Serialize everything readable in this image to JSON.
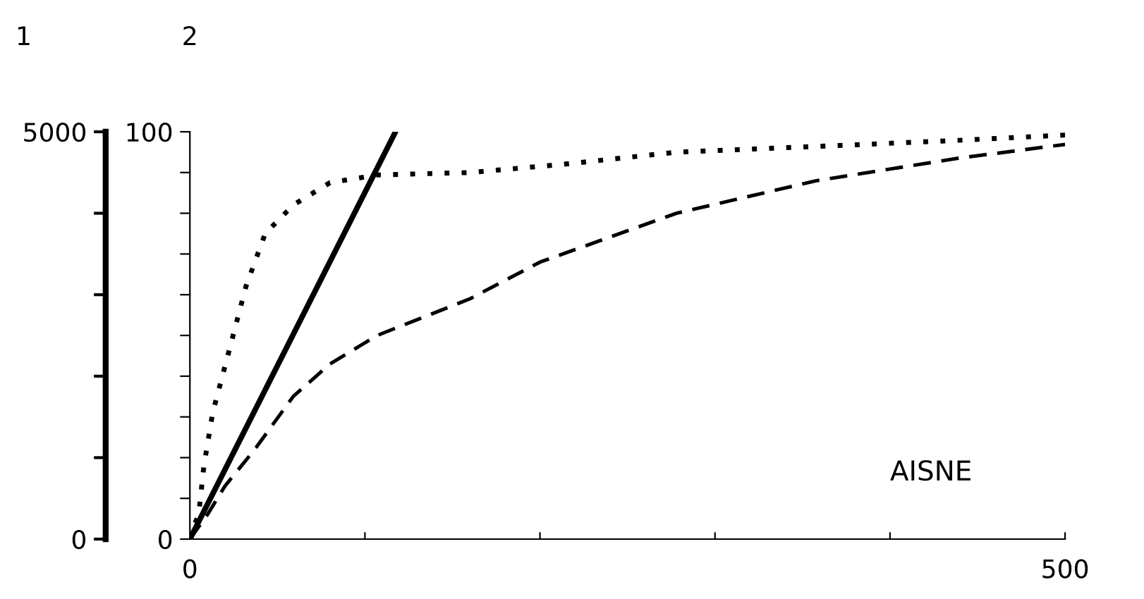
{
  "chart_data": {
    "type": "line",
    "ylabel": "1",
    "y2label": "2",
    "annotations": [
      "AISNE"
    ],
    "xlim": [
      0,
      500
    ],
    "xticks": [
      0,
      {
        "value": 100,
        "label": null
      },
      {
        "value": 200,
        "label": null
      },
      {
        "value": 300,
        "label": null
      },
      {
        "value": 400,
        "label": null
      },
      500
    ],
    "ylim": [
      0,
      5000
    ],
    "yticks": [
      0,
      {
        "value": 1000,
        "label": null
      },
      {
        "value": 2000,
        "label": null
      },
      {
        "value": 3000,
        "label": null
      },
      {
        "value": 4000,
        "label": null
      },
      5000
    ],
    "y2lim": [
      0,
      100
    ],
    "y2ticks": [
      0,
      {
        "value": 10,
        "label": null
      },
      {
        "value": 20,
        "label": null
      },
      {
        "value": 30,
        "label": null
      },
      {
        "value": 40,
        "label": null
      },
      {
        "value": 50,
        "label": null
      },
      {
        "value": 60,
        "label": null
      },
      {
        "value": 70,
        "label": null
      },
      {
        "value": 80,
        "label": null
      },
      {
        "value": 90,
        "label": null
      },
      100
    ],
    "grid": false,
    "legend": false,
    "marker": "none",
    "series": [
      {
        "color": "#000000",
        "line_style": "solid",
        "x": [
          0,
          117
        ],
        "values": [
          0,
          4980
        ]
      },
      {
        "color": "#000000",
        "line_style": "dotted",
        "axis": "y2",
        "x": [
          0,
          2,
          5,
          8,
          13,
          21,
          32,
          43,
          59,
          80,
          107,
          160,
          213,
          278,
          358,
          439,
          500
        ],
        "values": [
          0,
          3,
          6,
          18,
          31,
          44,
          62,
          75,
          82,
          87.5,
          89.4,
          90,
          92,
          95,
          96.4,
          97.9,
          99.2
        ]
      },
      {
        "color": "#000000",
        "line_style": "dashed",
        "axis": "y2",
        "x": [
          0,
          10,
          20,
          37,
          59,
          80,
          107,
          160,
          200,
          278,
          358,
          439,
          500
        ],
        "values": [
          0,
          6,
          13,
          22,
          35,
          43,
          50,
          59,
          68,
          80,
          88,
          93.5,
          96.9
        ]
      }
    ]
  }
}
